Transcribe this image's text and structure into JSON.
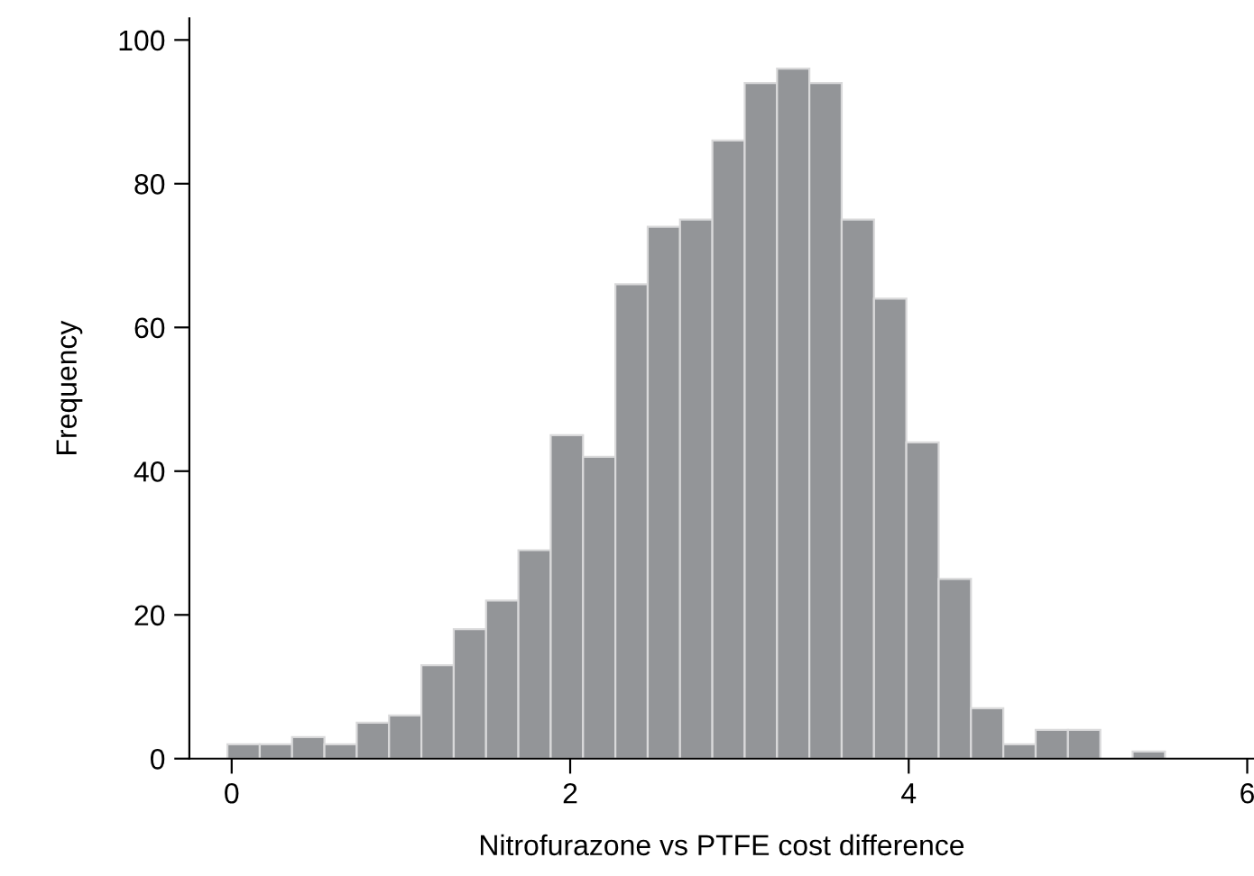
{
  "chart_data": {
    "type": "histogram",
    "xlabel": "Nitrofurazone vs PTFE cost difference",
    "ylabel": "Frequency",
    "bins": [
      -0.025,
      0.166,
      0.357,
      0.548,
      0.739,
      0.93,
      1.121,
      1.312,
      1.503,
      1.694,
      1.885,
      2.076,
      2.267,
      2.458,
      2.649,
      2.84,
      3.031,
      3.222,
      3.413,
      3.604,
      3.795,
      3.986,
      4.177,
      4.368,
      4.559,
      4.75,
      4.941,
      5.132,
      5.323,
      5.514
    ],
    "values": [
      2,
      2,
      3,
      2,
      5,
      6,
      13,
      18,
      22,
      29,
      45,
      42,
      66,
      74,
      75,
      86,
      94,
      96,
      94,
      75,
      64,
      44,
      25,
      7,
      2,
      4,
      4,
      0,
      1
    ],
    "color": "#939598",
    "xlim": [
      -0.25,
      6.04
    ],
    "ylim": [
      0,
      103
    ],
    "xticks": [
      0,
      2,
      4,
      6
    ],
    "yticks": [
      0,
      20,
      40,
      60,
      80,
      100
    ],
    "grid": false
  }
}
